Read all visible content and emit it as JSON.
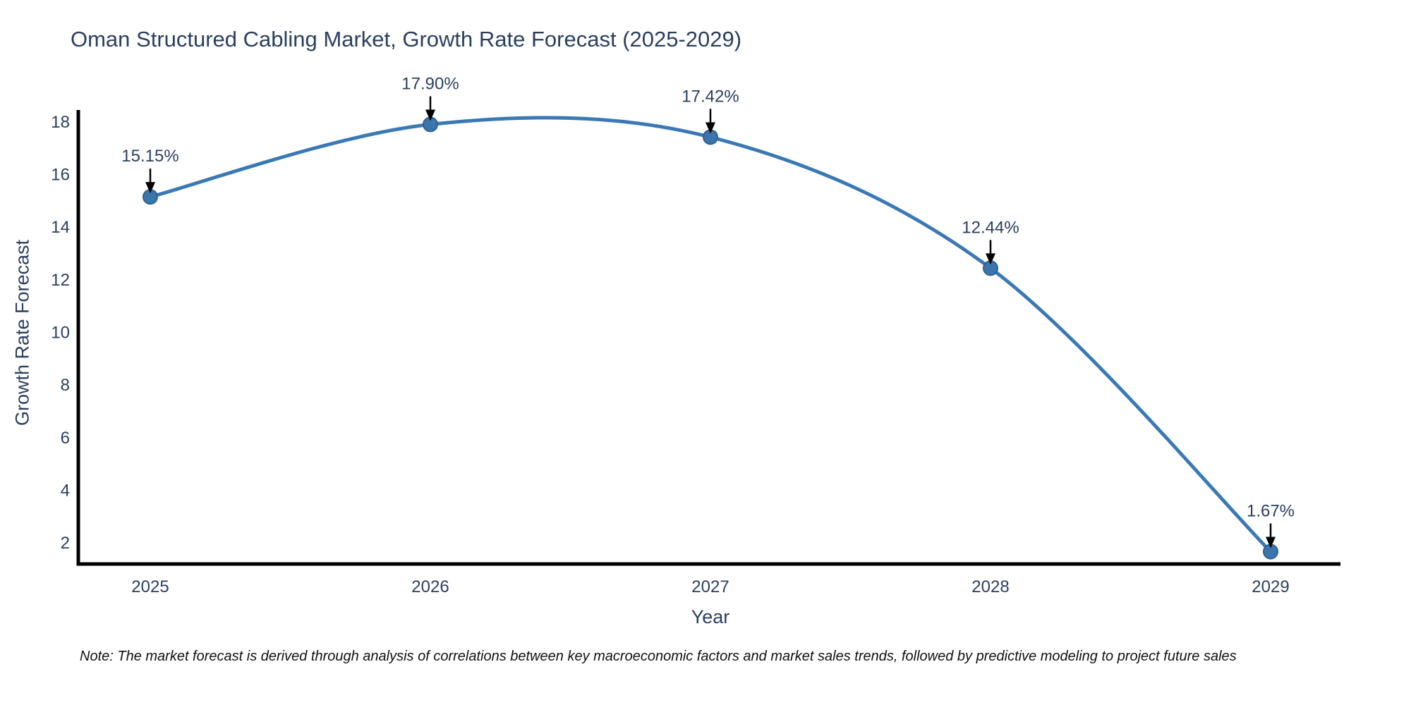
{
  "header": {
    "title": "Oman Structured Cabling Market, Growth Rate Forecast (2025-2029)"
  },
  "note": "Note: The market forecast is derived through analysis of correlations between key macroeconomic factors and market sales trends, followed by predictive modeling to project future sales",
  "chart_data": {
    "type": "line",
    "title": "Oman Structured Cabling Market, Growth Rate Forecast (2025-2029)",
    "xlabel": "Year",
    "ylabel": "Growth Rate Forecast",
    "x": [
      2025,
      2026,
      2027,
      2028,
      2029
    ],
    "values": [
      15.15,
      17.9,
      17.42,
      12.44,
      1.67
    ],
    "point_labels": [
      "15.15%",
      "17.90%",
      "17.42%",
      "12.44%",
      "1.67%"
    ],
    "xticks": [
      "2025",
      "2026",
      "2027",
      "2028",
      "2029"
    ],
    "yticks": [
      2,
      4,
      6,
      8,
      10,
      12,
      14,
      16,
      18
    ],
    "ylim": [
      1.2,
      18.45
    ],
    "grid": false,
    "legend": "none",
    "line_shape": "spline",
    "colors": {
      "line": "#3b79b5",
      "marker": "#3a76ad",
      "marker_edge": "#2e618f",
      "axis": "#000000",
      "text": "#2a3f5f",
      "annotation": "#2a3f5f",
      "arrow": "#000000",
      "background": "#ffffff"
    }
  }
}
